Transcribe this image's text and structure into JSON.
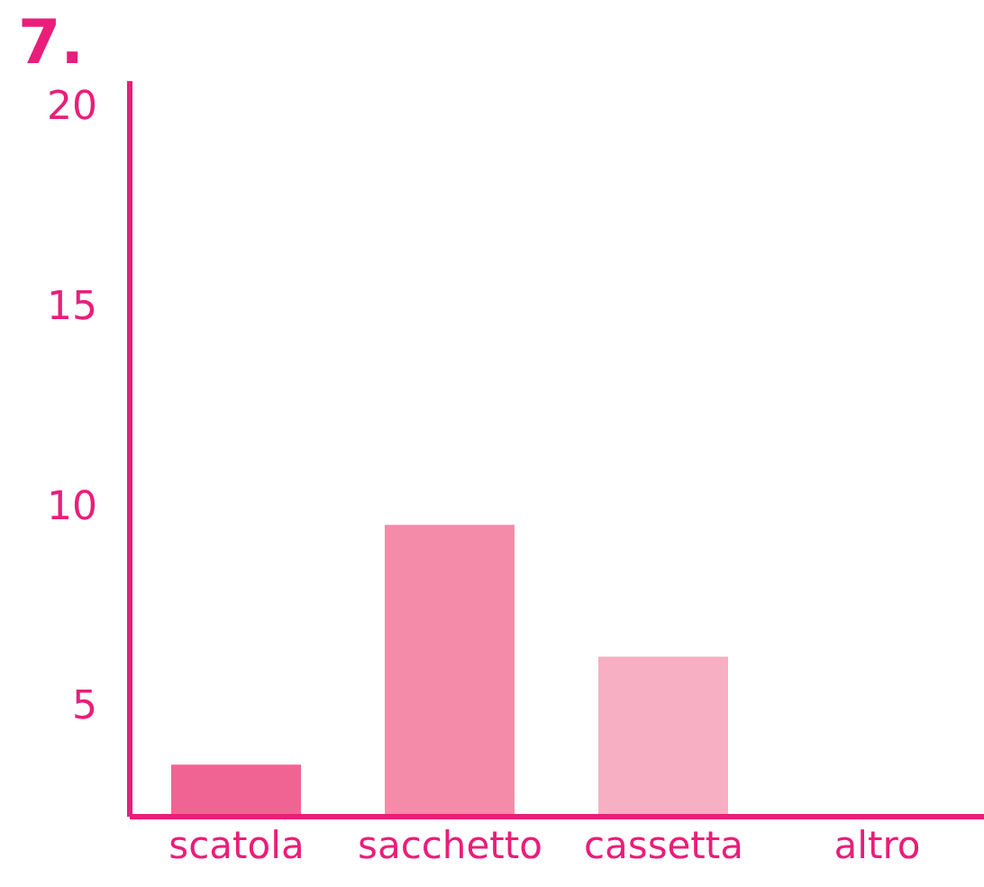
{
  "chart_data": {
    "type": "bar",
    "title": "7.",
    "categories": [
      "scatola",
      "sacchetto",
      "cassetta",
      "altro"
    ],
    "values": [
      3.5,
      9.5,
      6.2,
      null
    ],
    "colors": [
      "#f06493",
      "#f48ba8",
      "#f7b0c3",
      "#f7b0c3"
    ],
    "ylim": [
      2.2,
      20.6
    ],
    "yticks": [
      5,
      10,
      15,
      20
    ],
    "grid": false
  }
}
